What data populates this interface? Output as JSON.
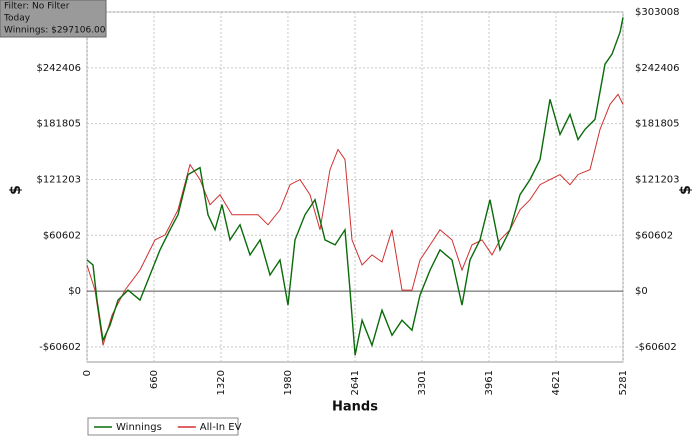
{
  "info": {
    "filter": "Filter: No Filter",
    "period": "Today",
    "winnings": "Winnings: $297106.00"
  },
  "chart_data": {
    "type": "line",
    "x_label": "Hands",
    "y_label": "$",
    "y2_label": "$",
    "xlim": [
      0,
      5281
    ],
    "xticks": [
      0,
      660,
      1320,
      1980,
      2641,
      3301,
      3961,
      4621,
      5281
    ],
    "ylim": [
      -77000,
      303008
    ],
    "yticks": [
      {
        "value": -60602,
        "label": "-$60602"
      },
      {
        "value": 0,
        "label": "$0"
      },
      {
        "value": 60602,
        "label": "$60602"
      },
      {
        "value": 121203,
        "label": "$121203"
      },
      {
        "value": 181805,
        "label": "$181805"
      },
      {
        "value": 242406,
        "label": "$242406"
      },
      {
        "value": 303008,
        "label": "$303008"
      }
    ],
    "grid": true,
    "legend": "bottom-left",
    "series": [
      {
        "name": "Winnings",
        "color": "#0a6b0a",
        "x": [
          0,
          59,
          99,
          158,
          227,
          305,
          404,
          522,
          621,
          719,
          818,
          897,
          995,
          1113,
          1192,
          1261,
          1330,
          1409,
          1507,
          1606,
          1705,
          1803,
          1902,
          1980,
          2049,
          2148,
          2246,
          2345,
          2444,
          2542,
          2591,
          2641,
          2710,
          2808,
          2907,
          3005,
          3104,
          3202,
          3281,
          3380,
          3478,
          3596,
          3695,
          3774,
          3872,
          3971,
          4069,
          4168,
          4266,
          4365,
          4463,
          4562,
          4660,
          4759,
          4838,
          4907,
          5005,
          5104,
          5173,
          5252,
          5281
        ],
        "values": [
          33800,
          28340,
          -9810,
          -53410,
          -37060,
          -9810,
          1090,
          -9810,
          17440,
          44690,
          66490,
          82840,
          126440,
          134070,
          82840,
          66490,
          93740,
          55590,
          71940,
          39240,
          55590,
          17440,
          33790,
          -15260,
          55590,
          82840,
          99190,
          55590,
          50140,
          66490,
          1090,
          -69760,
          -31610,
          -58860,
          -20710,
          -47960,
          -31610,
          -42510,
          -4360,
          22890,
          44690,
          33790,
          -15260,
          33790,
          55590,
          99190,
          44690,
          66490,
          104640,
          120990,
          142790,
          208190,
          170040,
          191840,
          164590,
          175490,
          186390,
          246340,
          257240,
          281220,
          297106
        ]
      },
      {
        "name": "All-In EV",
        "color": "#d03030",
        "x": [
          0,
          79,
          158,
          246,
          374,
          522,
          670,
          769,
          897,
          1015,
          1113,
          1212,
          1310,
          1429,
          1557,
          1685,
          1783,
          1902,
          2000,
          2099,
          2197,
          2296,
          2394,
          2473,
          2542,
          2611,
          2710,
          2808,
          2907,
          3005,
          3104,
          3202,
          3281,
          3380,
          3478,
          3596,
          3695,
          3793,
          3892,
          3990,
          4069,
          4168,
          4266,
          4365,
          4463,
          4562,
          4660,
          4759,
          4838,
          4956,
          5054,
          5153,
          5232,
          5281
        ],
        "values": [
          28340,
          1090,
          -58860,
          -26160,
          1090,
          22890,
          55590,
          61040,
          88290,
          137340,
          120990,
          93740,
          104640,
          82840,
          82840,
          82840,
          71940,
          88290,
          115540,
          120990,
          104640,
          66490,
          131890,
          153690,
          142790,
          55590,
          28340,
          39240,
          31610,
          66490,
          1090,
          1090,
          33790,
          50140,
          66490,
          55590,
          22890,
          50140,
          55590,
          39240,
          55590,
          66490,
          88290,
          99190,
          115540,
          120990,
          126440,
          115540,
          126440,
          131890,
          175490,
          202740,
          213640,
          202740
        ]
      }
    ]
  }
}
